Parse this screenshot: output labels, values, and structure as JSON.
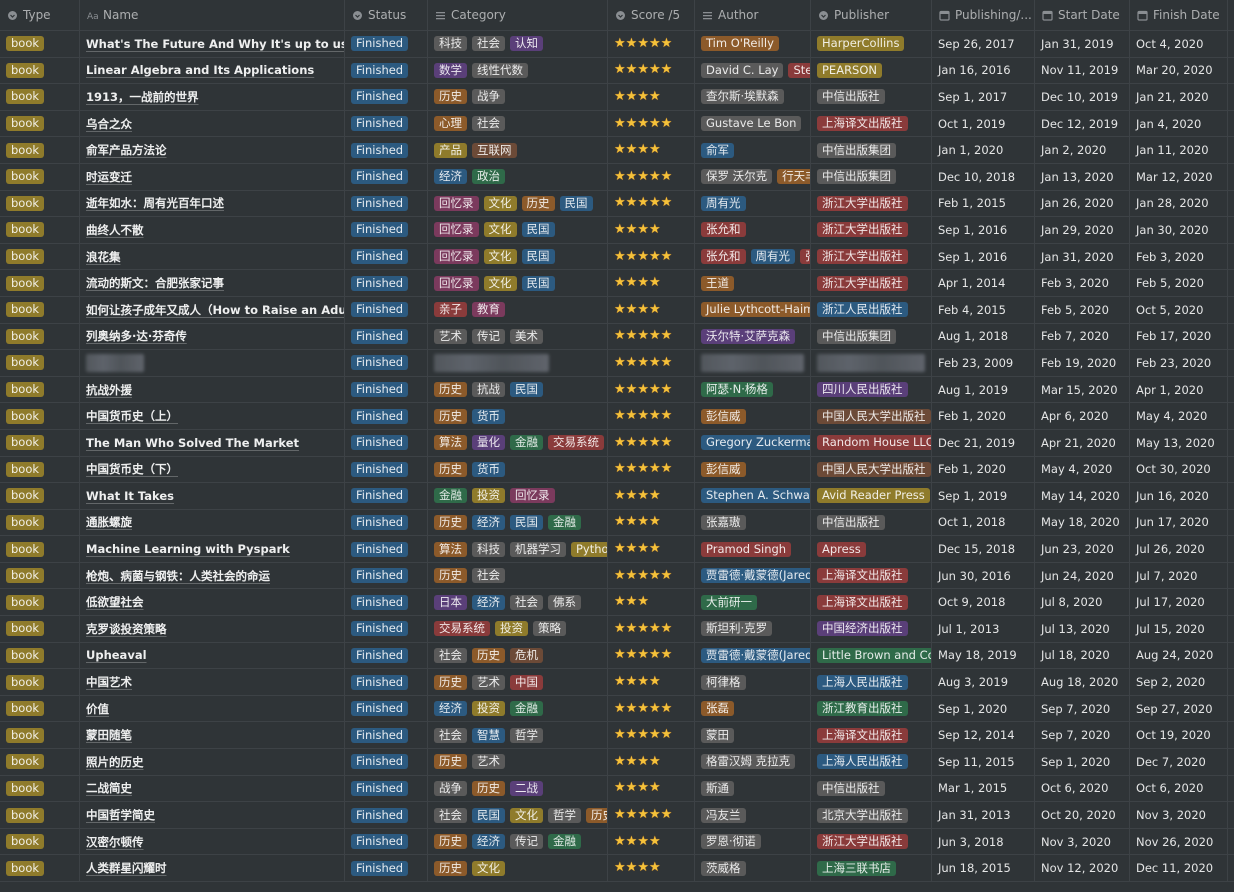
{
  "columns": [
    "Type",
    "Name",
    "Status",
    "Category",
    "Score /5",
    "Author",
    "Publisher",
    "Publishing/...",
    "Start Date",
    "Finish Date"
  ],
  "tag_colors": {
    "gray": "#5a5a5a",
    "brown": "#6c4a37",
    "orange": "#8c5a2a",
    "yellow": "#8f7b2b",
    "green": "#2f6a49",
    "blue": "#2c5a80",
    "purple": "#5a3f79",
    "pink": "#7b3a5d",
    "red": "#8a3b3b"
  },
  "option_colors": {
    "book": "yellow",
    "Finished": "blue",
    "科技": "gray",
    "社会": "gray",
    "认知": "purple",
    "数学": "purple",
    "线性代数": "gray",
    "历史": "orange",
    "战争": "gray",
    "心理": "orange",
    "产品": "yellow",
    "互联网": "brown",
    "经济": "blue",
    "政治": "green",
    "回忆录": "pink",
    "文化": "yellow",
    "民国": "blue",
    "亲子": "red",
    "教育": "pink",
    "艺术": "gray",
    "传记": "gray",
    "美术": "gray",
    "抗战": "gray",
    "货币": "blue",
    "算法": "orange",
    "量化": "purple",
    "金融": "green",
    "交易系统": "red",
    "投资": "yellow",
    "机器学习": "gray",
    "Python": "yellow",
    "日本": "purple",
    "佛系": "gray",
    "策略": "gray",
    "危机": "brown",
    "中国": "red",
    "智慧": "blue",
    "哲学": "gray",
    "二战": "purple",
    "Tim O'Reilly": "orange",
    "David C. Lay": "gray",
    "Steven R. Lay": "red",
    "查尔斯·埃默森": "gray",
    "Gustave Le Bon": "gray",
    "俞军": "blue",
    "保罗 沃尔克": "gray",
    "行天丰雄": "orange",
    "周有光": "blue",
    "张允和": "red",
    "张兆和": "red",
    "王道": "orange",
    "Julie Lythcott-Haims": "orange",
    "沃尔特·艾萨克森": "purple",
    "阿瑟·N·杨格": "green",
    "彭信威": "orange",
    "Gregory Zuckerman": "blue",
    "Stephen A. Schwarzman": "blue",
    "张嘉璈": "gray",
    "Pramod Singh": "red",
    "贾雷德·戴蒙德(Jared Diamond)": "blue",
    "大前研一": "green",
    "斯坦利·克罗": "gray",
    "柯律格": "gray",
    "张磊": "orange",
    "蒙田": "gray",
    "格雷汉姆 克拉克": "gray",
    "斯通": "gray",
    "冯友兰": "gray",
    "罗恩·彻诺": "gray",
    "茨威格": "gray",
    "HarperCollins": "yellow",
    "PEARSON": "yellow",
    "中信出版社": "gray",
    "上海译文出版社": "red",
    "中信出版集团": "gray",
    "浙江大学出版社": "red",
    "浙江人民出版社": "blue",
    "四川人民出版社": "purple",
    "中国人民大学出版社": "brown",
    "Random House LLC": "red",
    "Avid Reader Press": "yellow",
    "Apress": "red",
    "中国经济出版社": "purple",
    "Little Brown and Company": "green",
    "上海人民出版社": "blue",
    "浙江教育出版社": "green",
    "北京大学出版社": "gray",
    "上海三联书店": "green"
  },
  "rows": [
    {
      "type": "book",
      "name": "What's The Future And Why It's up to us",
      "status": "Finished",
      "category": [
        "科技",
        "社会",
        "认知"
      ],
      "score": 5,
      "author": [
        "Tim O'Reilly"
      ],
      "publisher": "HarperCollins",
      "published": "Sep 26, 2017",
      "start": "Jan 31, 2019",
      "finish": "Oct 4, 2020"
    },
    {
      "type": "book",
      "name": "Linear Algebra and Its Applications",
      "status": "Finished",
      "category": [
        "数学",
        "线性代数"
      ],
      "score": 5,
      "author": [
        "David C. Lay",
        "Steven R. Lay"
      ],
      "publisher": "PEARSON",
      "published": "Jan 16, 2016",
      "start": "Nov 11, 2019",
      "finish": "Mar 20, 2020"
    },
    {
      "type": "book",
      "name": "1913，一战前的世界",
      "status": "Finished",
      "category": [
        "历史",
        "战争"
      ],
      "score": 4,
      "author": [
        "查尔斯·埃默森"
      ],
      "publisher": "中信出版社",
      "published": "Sep 1, 2017",
      "start": "Dec 10, 2019",
      "finish": "Jan 21, 2020"
    },
    {
      "type": "book",
      "name": "乌合之众",
      "status": "Finished",
      "category": [
        "心理",
        "社会"
      ],
      "score": 5,
      "author": [
        "Gustave Le Bon"
      ],
      "publisher": "上海译文出版社",
      "published": "Oct 1, 2019",
      "start": "Dec 12, 2019",
      "finish": "Jan 4, 2020"
    },
    {
      "type": "book",
      "name": "俞军产品方法论",
      "status": "Finished",
      "category": [
        "产品",
        "互联网"
      ],
      "score": 4,
      "author": [
        "俞军"
      ],
      "publisher": "中信出版集团",
      "published": "Jan 1, 2020",
      "start": "Jan 2, 2020",
      "finish": "Jan 11, 2020"
    },
    {
      "type": "book",
      "name": "时运变迁",
      "status": "Finished",
      "category": [
        "经济",
        "政治"
      ],
      "score": 5,
      "author": [
        "保罗 沃尔克",
        "行天丰雄"
      ],
      "publisher": "中信出版集团",
      "published": "Dec 10, 2018",
      "start": "Jan 13, 2020",
      "finish": "Mar 12, 2020"
    },
    {
      "type": "book",
      "name": "逝年如水：周有光百年口述",
      "status": "Finished",
      "category": [
        "回忆录",
        "文化",
        "历史",
        "民国"
      ],
      "score": 5,
      "author": [
        "周有光"
      ],
      "publisher": "浙江大学出版社",
      "published": "Feb 1, 2015",
      "start": "Jan 26, 2020",
      "finish": "Jan 28, 2020"
    },
    {
      "type": "book",
      "name": "曲终人不散",
      "status": "Finished",
      "category": [
        "回忆录",
        "文化",
        "民国"
      ],
      "score": 4,
      "author": [
        "张允和"
      ],
      "publisher": "浙江大学出版社",
      "published": "Sep 1, 2016",
      "start": "Jan 29, 2020",
      "finish": "Jan 30, 2020"
    },
    {
      "type": "book",
      "name": "浪花集",
      "status": "Finished",
      "category": [
        "回忆录",
        "文化",
        "民国"
      ],
      "score": 5,
      "author": [
        "张允和",
        "周有光",
        "张兆和"
      ],
      "publisher": "浙江大学出版社",
      "published": "Sep 1, 2016",
      "start": "Jan 31, 2020",
      "finish": "Feb 3, 2020"
    },
    {
      "type": "book",
      "name": "流动的斯文：合肥张家记事",
      "status": "Finished",
      "category": [
        "回忆录",
        "文化",
        "民国"
      ],
      "score": 4,
      "author": [
        "王道"
      ],
      "publisher": "浙江大学出版社",
      "published": "Apr 1, 2014",
      "start": "Feb 3, 2020",
      "finish": "Feb 5, 2020"
    },
    {
      "type": "book",
      "name": "如何让孩子成年又成人（How to Raise an Adult）",
      "status": "Finished",
      "category": [
        "亲子",
        "教育"
      ],
      "score": 4,
      "author": [
        "Julie Lythcott-Haims"
      ],
      "publisher": "浙江人民出版社",
      "published": "Feb 4, 2015",
      "start": "Feb 5, 2020",
      "finish": "Oct 5, 2020"
    },
    {
      "type": "book",
      "name": "列奥纳多·达·芬奇传",
      "status": "Finished",
      "category": [
        "艺术",
        "传记",
        "美术"
      ],
      "score": 5,
      "author": [
        "沃尔特·艾萨克森"
      ],
      "publisher": "中信出版集团",
      "published": "Aug 1, 2018",
      "start": "Feb 7, 2020",
      "finish": "Feb 17, 2020"
    },
    {
      "type": "book",
      "name": null,
      "status": "Finished",
      "category": null,
      "score": 5,
      "author": null,
      "publisher": null,
      "published": "Feb 23, 2009",
      "start": "Feb 19, 2020",
      "finish": "Feb 23, 2020"
    },
    {
      "type": "book",
      "name": "抗战外援",
      "status": "Finished",
      "category": [
        "历史",
        "抗战",
        "民国"
      ],
      "score": 5,
      "author": [
        "阿瑟·N·杨格"
      ],
      "publisher": "四川人民出版社",
      "published": "Aug 1, 2019",
      "start": "Mar 15, 2020",
      "finish": "Apr 1, 2020"
    },
    {
      "type": "book",
      "name": "中国货币史（上）",
      "status": "Finished",
      "category": [
        "历史",
        "货币"
      ],
      "score": 5,
      "author": [
        "彭信威"
      ],
      "publisher": "中国人民大学出版社",
      "published": "Feb 1, 2020",
      "start": "Apr 6, 2020",
      "finish": "May 4, 2020"
    },
    {
      "type": "book",
      "name": "The Man Who Solved The Market",
      "status": "Finished",
      "category": [
        "算法",
        "量化",
        "金融",
        "交易系统"
      ],
      "score": 5,
      "author": [
        "Gregory Zuckerman"
      ],
      "publisher": "Random House LLC",
      "published": "Dec 21, 2019",
      "start": "Apr 21, 2020",
      "finish": "May 13, 2020"
    },
    {
      "type": "book",
      "name": "中国货币史（下）",
      "status": "Finished",
      "category": [
        "历史",
        "货币"
      ],
      "score": 5,
      "author": [
        "彭信威"
      ],
      "publisher": "中国人民大学出版社",
      "published": "Feb 1, 2020",
      "start": "May 4, 2020",
      "finish": "Oct 30, 2020"
    },
    {
      "type": "book",
      "name": "What It Takes",
      "status": "Finished",
      "category": [
        "金融",
        "投资",
        "回忆录"
      ],
      "score": 4,
      "author": [
        "Stephen A. Schwarzman"
      ],
      "publisher": "Avid Reader Press",
      "published": "Sep 1, 2019",
      "start": "May 14, 2020",
      "finish": "Jun 16, 2020"
    },
    {
      "type": "book",
      "name": "通胀螺旋",
      "status": "Finished",
      "category": [
        "历史",
        "经济",
        "民国",
        "金融"
      ],
      "score": 4,
      "author": [
        "张嘉璈"
      ],
      "publisher": "中信出版社",
      "published": "Oct 1, 2018",
      "start": "May 18, 2020",
      "finish": "Jun 17, 2020"
    },
    {
      "type": "book",
      "name": "Machine Learning with Pyspark",
      "status": "Finished",
      "category": [
        "算法",
        "科技",
        "机器学习",
        "Python"
      ],
      "score": 4,
      "author": [
        "Pramod Singh"
      ],
      "publisher": "Apress",
      "published": "Dec 15, 2018",
      "start": "Jun 23, 2020",
      "finish": "Jul 26, 2020"
    },
    {
      "type": "book",
      "name": "枪炮、病菌与钢铁：人类社会的命运",
      "status": "Finished",
      "category": [
        "历史",
        "社会"
      ],
      "score": 5,
      "author": [
        "贾雷德·戴蒙德(Jared Diamond)"
      ],
      "publisher": "上海译文出版社",
      "published": "Jun 30, 2016",
      "start": "Jun 24, 2020",
      "finish": "Jul 7, 2020"
    },
    {
      "type": "book",
      "name": "低欲望社会",
      "status": "Finished",
      "category": [
        "日本",
        "经济",
        "社会",
        "佛系"
      ],
      "score": 3,
      "author": [
        "大前研一"
      ],
      "publisher": "上海译文出版社",
      "published": "Oct 9, 2018",
      "start": "Jul 8, 2020",
      "finish": "Jul 17, 2020"
    },
    {
      "type": "book",
      "name": "克罗谈投资策略",
      "status": "Finished",
      "category": [
        "交易系统",
        "投资",
        "策略"
      ],
      "score": 5,
      "author": [
        "斯坦利·克罗"
      ],
      "publisher": "中国经济出版社",
      "published": "Jul 1, 2013",
      "start": "Jul 13, 2020",
      "finish": "Jul 15, 2020"
    },
    {
      "type": "book",
      "name": "Upheaval",
      "status": "Finished",
      "category": [
        "社会",
        "历史",
        "危机"
      ],
      "score": 5,
      "author": [
        "贾雷德·戴蒙德(Jared Diamond)"
      ],
      "publisher": "Little Brown and Company",
      "published": "May 18, 2019",
      "start": "Jul 18, 2020",
      "finish": "Aug 24, 2020"
    },
    {
      "type": "book",
      "name": "中国艺术",
      "status": "Finished",
      "category": [
        "历史",
        "艺术",
        "中国"
      ],
      "score": 4,
      "author": [
        "柯律格"
      ],
      "publisher": "上海人民出版社",
      "published": "Aug 3, 2019",
      "start": "Aug 18, 2020",
      "finish": "Sep 2, 2020"
    },
    {
      "type": "book",
      "name": "价值",
      "status": "Finished",
      "category": [
        "经济",
        "投资",
        "金融"
      ],
      "score": 5,
      "author": [
        "张磊"
      ],
      "publisher": "浙江教育出版社",
      "published": "Sep 1, 2020",
      "start": "Sep 7, 2020",
      "finish": "Sep 27, 2020"
    },
    {
      "type": "book",
      "name": "蒙田随笔",
      "status": "Finished",
      "category": [
        "社会",
        "智慧",
        "哲学"
      ],
      "score": 5,
      "author": [
        "蒙田"
      ],
      "publisher": "上海译文出版社",
      "published": "Sep 12, 2014",
      "start": "Sep 7, 2020",
      "finish": "Oct 19, 2020"
    },
    {
      "type": "book",
      "name": "照片的历史",
      "status": "Finished",
      "category": [
        "历史",
        "艺术"
      ],
      "score": 4,
      "author": [
        "格雷汉姆 克拉克"
      ],
      "publisher": "上海人民出版社",
      "published": "Sep 11, 2015",
      "start": "Sep 1, 2020",
      "finish": "Dec 7, 2020"
    },
    {
      "type": "book",
      "name": "二战简史",
      "status": "Finished",
      "category": [
        "战争",
        "历史",
        "二战"
      ],
      "score": 4,
      "author": [
        "斯通"
      ],
      "publisher": "中信出版社",
      "published": "Mar 1, 2015",
      "start": "Oct 6, 2020",
      "finish": "Oct 6, 2020"
    },
    {
      "type": "book",
      "name": "中国哲学简史",
      "status": "Finished",
      "category": [
        "社会",
        "民国",
        "文化",
        "哲学",
        "历史"
      ],
      "score": 5,
      "author": [
        "冯友兰"
      ],
      "publisher": "北京大学出版社",
      "published": "Jan 31, 2013",
      "start": "Oct 20, 2020",
      "finish": "Nov 3, 2020"
    },
    {
      "type": "book",
      "name": "汉密尔顿传",
      "status": "Finished",
      "category": [
        "历史",
        "经济",
        "传记",
        "金融"
      ],
      "score": 4,
      "author": [
        "罗恩·彻诺"
      ],
      "publisher": "浙江大学出版社",
      "published": "Jun 3, 2018",
      "start": "Nov 3, 2020",
      "finish": "Nov 26, 2020"
    },
    {
      "type": "book",
      "name": "人类群星闪耀时",
      "status": "Finished",
      "category": [
        "历史",
        "文化"
      ],
      "score": 4,
      "author": [
        "茨威格"
      ],
      "publisher": "上海三联书店",
      "published": "Jun 18, 2015",
      "start": "Nov 12, 2020",
      "finish": "Dec 11, 2020"
    }
  ]
}
